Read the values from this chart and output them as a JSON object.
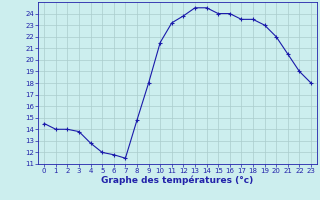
{
  "hours": [
    0,
    1,
    2,
    3,
    4,
    5,
    6,
    7,
    8,
    9,
    10,
    11,
    12,
    13,
    14,
    15,
    16,
    17,
    18,
    19,
    20,
    21,
    22,
    23
  ],
  "temperatures": [
    14.5,
    14.0,
    14.0,
    13.8,
    12.8,
    12.0,
    11.8,
    11.5,
    14.8,
    18.0,
    21.5,
    23.2,
    23.8,
    24.5,
    24.5,
    24.0,
    24.0,
    23.5,
    23.5,
    23.0,
    22.0,
    20.5,
    19.0,
    18.0
  ],
  "line_color": "#1a1aaa",
  "marker": "+",
  "marker_size": 3,
  "bg_color": "#cceeee",
  "grid_color": "#aacccc",
  "xlabel": "Graphe des températures (°c)",
  "xlabel_color": "#2222aa",
  "xlim": [
    -0.5,
    23.5
  ],
  "ylim": [
    11,
    25
  ],
  "yticks": [
    11,
    12,
    13,
    14,
    15,
    16,
    17,
    18,
    19,
    20,
    21,
    22,
    23,
    24
  ],
  "xticks": [
    0,
    1,
    2,
    3,
    4,
    5,
    6,
    7,
    8,
    9,
    10,
    11,
    12,
    13,
    14,
    15,
    16,
    17,
    18,
    19,
    20,
    21,
    22,
    23
  ],
  "tick_color": "#2222aa",
  "tick_fontsize": 5.0,
  "xlabel_fontsize": 6.5,
  "spine_color": "#2222aa"
}
